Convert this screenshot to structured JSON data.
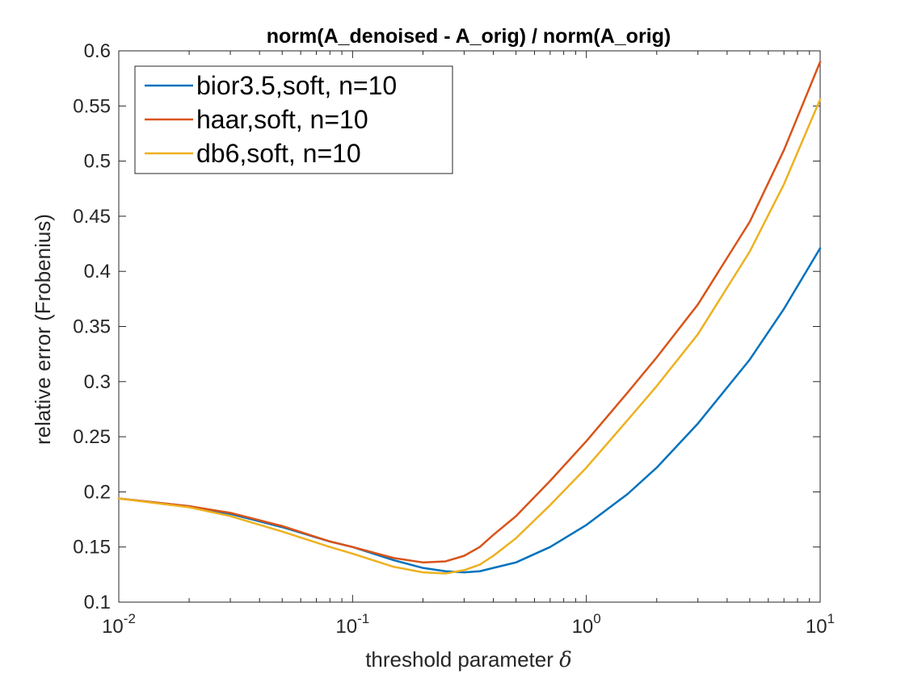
{
  "chart_data": {
    "type": "line",
    "title": "norm(A_denoised - A_orig) / norm(A_orig)",
    "xlabel": "threshold parameter",
    "xlabel_symbol": "δ",
    "ylabel": "relative error (Frobenius)",
    "xscale": "log",
    "xlim": [
      0.01,
      10
    ],
    "ylim": [
      0.1,
      0.6
    ],
    "grid": false,
    "legend_position": "top-left",
    "xticks": [
      {
        "base": "10",
        "exp": "-2",
        "value": 0.01
      },
      {
        "base": "10",
        "exp": "-1",
        "value": 0.1
      },
      {
        "base": "10",
        "exp": "0",
        "value": 1
      },
      {
        "base": "10",
        "exp": "1",
        "value": 10
      }
    ],
    "yticks": [
      {
        "label": "0.1",
        "value": 0.1
      },
      {
        "label": "0.15",
        "value": 0.15
      },
      {
        "label": "0.2",
        "value": 0.2
      },
      {
        "label": "0.25",
        "value": 0.25
      },
      {
        "label": "0.3",
        "value": 0.3
      },
      {
        "label": "0.35",
        "value": 0.35
      },
      {
        "label": "0.4",
        "value": 0.4
      },
      {
        "label": "0.45",
        "value": 0.45
      },
      {
        "label": "0.5",
        "value": 0.5
      },
      {
        "label": "0.55",
        "value": 0.55
      },
      {
        "label": "0.6",
        "value": 0.6
      }
    ],
    "series": [
      {
        "name": "bior3.5,soft, n=10",
        "color": "#0072BD",
        "points": [
          [
            0.01,
            0.194
          ],
          [
            0.02,
            0.187
          ],
          [
            0.03,
            0.18
          ],
          [
            0.05,
            0.168
          ],
          [
            0.08,
            0.155
          ],
          [
            0.1,
            0.15
          ],
          [
            0.15,
            0.138
          ],
          [
            0.2,
            0.131
          ],
          [
            0.25,
            0.128
          ],
          [
            0.3,
            0.127
          ],
          [
            0.35,
            0.128
          ],
          [
            0.4,
            0.131
          ],
          [
            0.5,
            0.136
          ],
          [
            0.7,
            0.15
          ],
          [
            1.0,
            0.17
          ],
          [
            1.5,
            0.198
          ],
          [
            2,
            0.222
          ],
          [
            3,
            0.262
          ],
          [
            5,
            0.32
          ],
          [
            7,
            0.366
          ],
          [
            10,
            0.421
          ]
        ]
      },
      {
        "name": "haar,soft, n=10",
        "color": "#D95319",
        "points": [
          [
            0.01,
            0.194
          ],
          [
            0.02,
            0.187
          ],
          [
            0.03,
            0.181
          ],
          [
            0.05,
            0.169
          ],
          [
            0.08,
            0.155
          ],
          [
            0.1,
            0.15
          ],
          [
            0.15,
            0.14
          ],
          [
            0.2,
            0.136
          ],
          [
            0.25,
            0.137
          ],
          [
            0.3,
            0.142
          ],
          [
            0.35,
            0.15
          ],
          [
            0.4,
            0.161
          ],
          [
            0.5,
            0.178
          ],
          [
            0.7,
            0.21
          ],
          [
            1.0,
            0.246
          ],
          [
            1.5,
            0.29
          ],
          [
            2,
            0.322
          ],
          [
            3,
            0.37
          ],
          [
            5,
            0.445
          ],
          [
            7,
            0.51
          ],
          [
            10,
            0.59
          ]
        ]
      },
      {
        "name": "db6,soft, n=10",
        "color": "#EDB120",
        "points": [
          [
            0.01,
            0.194
          ],
          [
            0.02,
            0.186
          ],
          [
            0.03,
            0.178
          ],
          [
            0.05,
            0.164
          ],
          [
            0.08,
            0.15
          ],
          [
            0.1,
            0.144
          ],
          [
            0.15,
            0.132
          ],
          [
            0.2,
            0.127
          ],
          [
            0.25,
            0.126
          ],
          [
            0.3,
            0.129
          ],
          [
            0.35,
            0.134
          ],
          [
            0.4,
            0.142
          ],
          [
            0.5,
            0.158
          ],
          [
            0.7,
            0.188
          ],
          [
            1.0,
            0.222
          ],
          [
            1.5,
            0.265
          ],
          [
            2,
            0.296
          ],
          [
            3,
            0.343
          ],
          [
            5,
            0.418
          ],
          [
            7,
            0.479
          ],
          [
            10,
            0.556
          ]
        ]
      }
    ]
  }
}
